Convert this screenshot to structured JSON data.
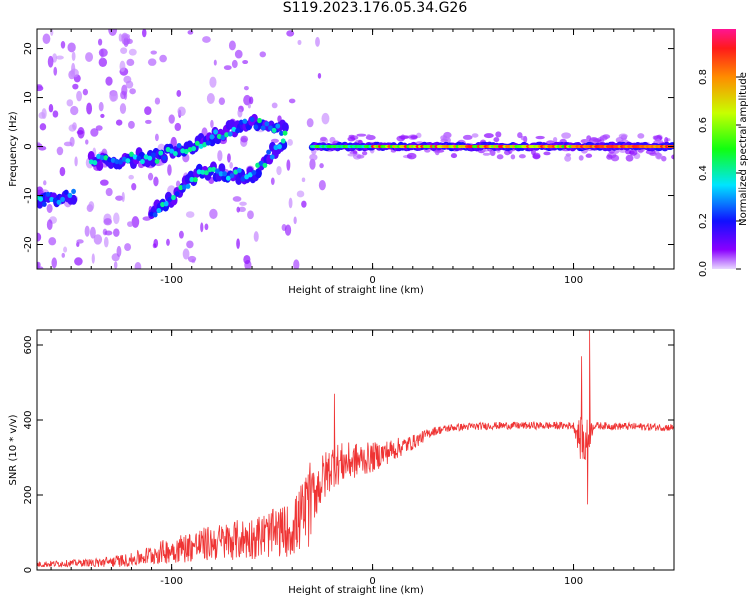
{
  "title": "S119.2023.176.05.34.G26",
  "chart_data": [
    {
      "type": "heatmap",
      "xlabel": "Height of straight line (km)",
      "ylabel": "Frequency (Hz)",
      "xlim": [
        -167,
        150
      ],
      "ylim": [
        -25,
        24
      ],
      "xticks": [
        -100,
        0,
        100
      ],
      "yticks": [
        -20,
        -10,
        0,
        10,
        20
      ],
      "grid": false,
      "colorbar": {
        "label": "Normalized spectral amplitude",
        "range": [
          0,
          1
        ],
        "ticks": [
          "0.0",
          "0.2",
          "0.4",
          "0.6",
          "0.8"
        ],
        "colormap": "hsv (violet → blue → cyan → green → yellow → orange → red)"
      },
      "ridge_segments": [
        {
          "name": "low-frequency start",
          "x": [
            -167,
            -148
          ],
          "freq": [
            -11,
            -10
          ]
        },
        {
          "name": "branch A",
          "x": [
            -140,
            -105,
            -60,
            -42
          ],
          "freq": [
            -3,
            -2,
            5,
            3
          ]
        },
        {
          "name": "branch B",
          "x": [
            -110,
            -85,
            -60,
            -43
          ],
          "freq": [
            -14,
            -5,
            -6,
            2
          ]
        },
        {
          "name": "steady tone",
          "x": [
            -30,
            0,
            100,
            150
          ],
          "freq": [
            0,
            0,
            0,
            0
          ]
        }
      ]
    },
    {
      "type": "line",
      "xlabel": "Height of straight line (km)",
      "ylabel": "SNR (10 * v/v)",
      "xlim": [
        -167,
        150
      ],
      "ylim": [
        0,
        640
      ],
      "xticks": [
        -100,
        0,
        100
      ],
      "yticks": [
        0,
        200,
        400,
        600
      ],
      "color": "#ef3434",
      "grid": false,
      "envelope": {
        "x": [
          -167,
          -140,
          -120,
          -100,
          -80,
          -60,
          -40,
          -30,
          -20,
          0,
          10,
          20,
          30,
          40,
          60,
          100,
          105,
          110,
          150
        ],
        "y": [
          15,
          20,
          30,
          60,
          80,
          95,
          120,
          200,
          280,
          300,
          320,
          340,
          370,
          380,
          385,
          385,
          330,
          385,
          380
        ],
        "noise": [
          8,
          10,
          15,
          30,
          45,
          50,
          55,
          80,
          60,
          40,
          30,
          20,
          12,
          10,
          10,
          10,
          80,
          10,
          10
        ]
      },
      "peaks": [
        {
          "x": -19,
          "y": 470
        },
        {
          "x": 104,
          "y": 570
        },
        {
          "x": 108,
          "y": 640
        },
        {
          "x": 107,
          "y": 175
        }
      ]
    }
  ]
}
